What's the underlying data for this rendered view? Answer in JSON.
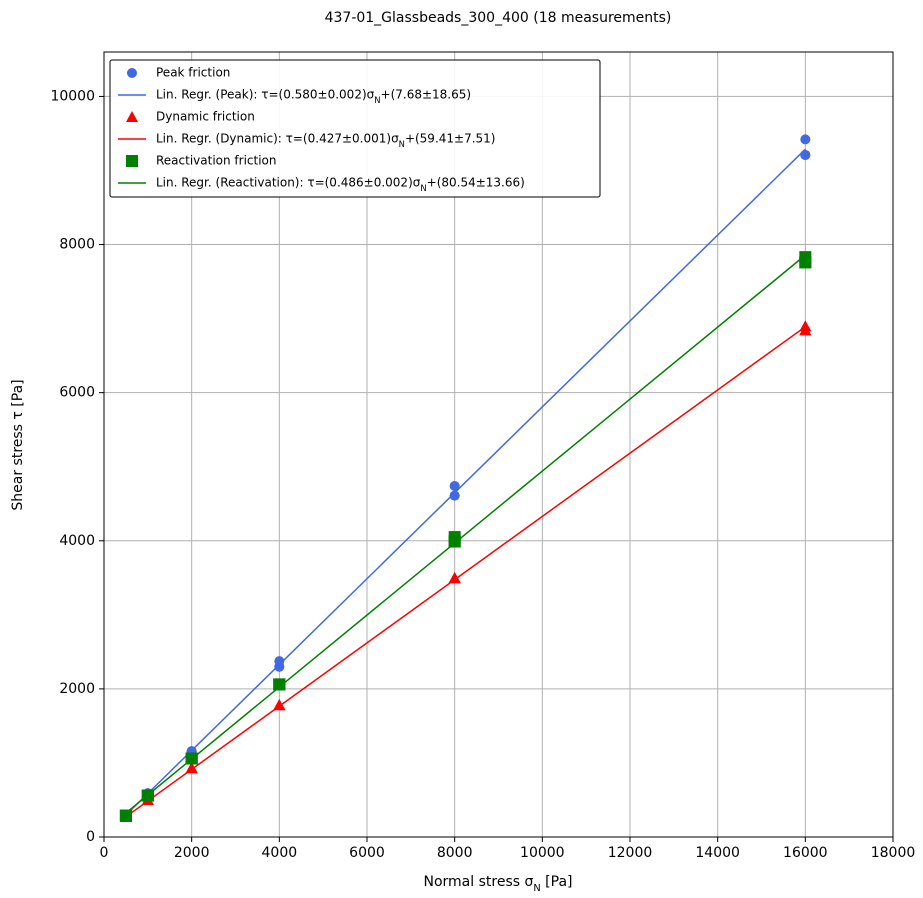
{
  "chart_data": {
    "type": "scatter",
    "title": "437-01_Glassbeads_300_400 (18 measurements)",
    "xlabel": "Normal stress σN [Pa]",
    "ylabel": "Shear stress τ [Pa]",
    "xlim": [
      0,
      18000
    ],
    "xticks": [
      0,
      2000,
      4000,
      6000,
      8000,
      10000,
      12000,
      14000,
      16000,
      18000
    ],
    "ylim": [
      0,
      10600
    ],
    "yticks": [
      0,
      2000,
      4000,
      6000,
      8000,
      10000
    ],
    "grid": true,
    "legend": "upper left",
    "series": [
      {
        "name": "Peak friction",
        "color": "#4169e1",
        "marker": "circle",
        "x": [
          500,
          500,
          500,
          1000,
          1000,
          1000,
          2000,
          2000,
          2000,
          4000,
          4000,
          4000,
          8000,
          8000,
          8000,
          16000,
          16000,
          16000
        ],
        "values": [
          290,
          290,
          290,
          590,
          590,
          590,
          1160,
          1150,
          1150,
          2375,
          2300,
          2300,
          4740,
          4610,
          4610,
          9420,
          9210,
          9210
        ]
      },
      {
        "name": "Lin. Regr. (Peak): τ=(0.580±0.002)σN+(7.68±18.65)",
        "color": "#4169e1",
        "marker": "line",
        "x": [
          500,
          16000
        ],
        "values": [
          298,
          9288
        ]
      },
      {
        "name": "Dynamic friction",
        "color": "#ff0000",
        "marker": "triangle",
        "x": [
          500,
          500,
          500,
          1000,
          1000,
          1000,
          2000,
          2000,
          2000,
          4000,
          4000,
          4000,
          8000,
          8000,
          8000,
          16000,
          16000,
          16000
        ],
        "values": [
          270,
          270,
          270,
          500,
          500,
          500,
          930,
          930,
          930,
          1780,
          1780,
          1780,
          3495,
          3495,
          3495,
          6896,
          6842,
          6842
        ]
      },
      {
        "name": "Lin. Regr. (Dynamic): τ=(0.427±0.001)σN+(59.41±7.51)",
        "color": "#ff0000",
        "marker": "line",
        "x": [
          500,
          16000
        ],
        "values": [
          273,
          6891
        ]
      },
      {
        "name": "Reactivation friction",
        "color": "#008000",
        "marker": "square",
        "x": [
          500,
          500,
          500,
          1000,
          1000,
          1000,
          2000,
          2000,
          2000,
          4000,
          4000,
          4000,
          8000,
          8000,
          8000,
          16000,
          16000,
          16000
        ],
        "values": [
          290,
          290,
          290,
          560,
          560,
          560,
          1060,
          1060,
          1060,
          2060,
          2060,
          2060,
          4050,
          3990,
          3990,
          7830,
          7760,
          7760
        ]
      },
      {
        "name": "Lin. Regr. (Reactivation): τ=(0.486±0.002)σN+(80.54±13.66)",
        "color": "#008000",
        "marker": "line",
        "x": [
          500,
          16000
        ],
        "values": [
          324,
          7857
        ]
      }
    ]
  }
}
